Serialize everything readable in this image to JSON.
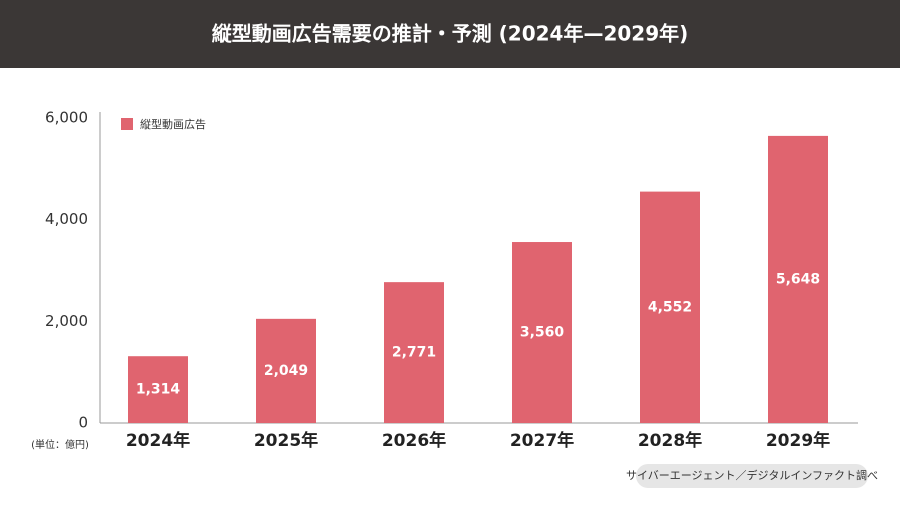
{
  "chart_data": {
    "type": "bar",
    "title": "縦型動画広告需要の推計・予測 (2024年—2029年)",
    "categories": [
      "2024年",
      "2025年",
      "2026年",
      "2027年",
      "2028年",
      "2029年"
    ],
    "series": [
      {
        "name": "縦型動画広告",
        "color": "#e0646f",
        "values": [
          1314,
          2049,
          2771,
          3560,
          4552,
          5648
        ],
        "value_labels": [
          "1,314",
          "2,049",
          "2,771",
          "3,560",
          "4,552",
          "5,648"
        ]
      }
    ],
    "ylim": [
      0,
      6000
    ],
    "yticks": [
      0,
      {
        "value": 2000,
        "label": "2,000"
      },
      {
        "value": 4000,
        "label": "4,000"
      },
      {
        "value": 6000,
        "label": "6,000"
      }
    ],
    "unit_label": "(単位：億円)",
    "source": "サイバーエージェント／デジタルインファクト調べ",
    "grid": false,
    "legend": "top-left"
  }
}
